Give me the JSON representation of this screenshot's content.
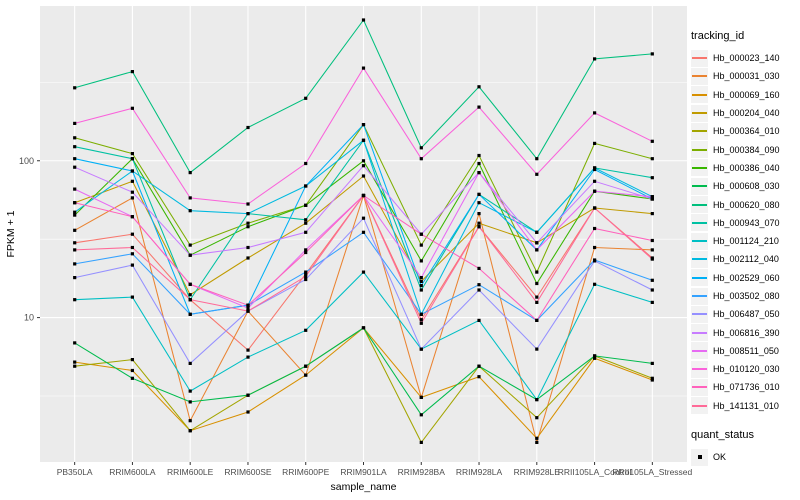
{
  "chart_data": {
    "type": "line",
    "title": "",
    "xlabel": "sample_name",
    "ylabel": "FPKM + 1",
    "y_scale": "log10",
    "ylim": [
      1.2,
      970
    ],
    "y_major_ticks": [
      {
        "value": 10,
        "label": "10"
      },
      {
        "value": 100,
        "label": "100"
      }
    ],
    "y_minor_ticks": [
      3.162,
      31.62,
      316.2
    ],
    "grid": true,
    "legend_position": "right",
    "categories": [
      "PB350LA",
      "RRIM600LA",
      "RRIM600LE",
      "RRIM600SE",
      "RRIM600PE",
      "RRIM901LA",
      "RRIM928BA",
      "RRIM928LA",
      "RRIM928LE",
      "RRII105LA_Control",
      "RRII105LA_Stressed"
    ],
    "series": [
      {
        "name": "Hb_000023_140",
        "color": "#F8766D",
        "values": [
          30,
          34,
          13,
          6.2,
          19,
          60,
          9.7,
          38,
          13.5,
          50,
          24
        ]
      },
      {
        "name": "Hb_000031_030",
        "color": "#EA8331",
        "values": [
          36,
          58,
          2.2,
          11,
          4.3,
          60,
          3.1,
          46,
          1.6,
          28,
          27
        ]
      },
      {
        "name": "Hb_000069_160",
        "color": "#D89000",
        "values": [
          5.2,
          4.6,
          1.9,
          2.5,
          4.3,
          8.6,
          3.1,
          4.2,
          1.7,
          5.5,
          4.0
        ]
      },
      {
        "name": "Hb_000204_040",
        "color": "#C09B00",
        "values": [
          54,
          74,
          14,
          24,
          40,
          80,
          17,
          40,
          30,
          50,
          46
        ]
      },
      {
        "name": "Hb_000364_010",
        "color": "#A3A500",
        "values": [
          4.9,
          5.4,
          1.9,
          3.2,
          4.9,
          8.6,
          1.6,
          4.9,
          2.3,
          5.7,
          4.1
        ]
      },
      {
        "name": "Hb_000384_090",
        "color": "#7CAE00",
        "values": [
          140,
          111,
          29,
          40,
          52,
          170,
          29,
          108,
          19.5,
          129,
          103
        ]
      },
      {
        "name": "Hb_000386_040",
        "color": "#39B600",
        "values": [
          45,
          103,
          25,
          38,
          52,
          100,
          23,
          96,
          16.5,
          64,
          57
        ]
      },
      {
        "name": "Hb_000608_030",
        "color": "#00BB4E",
        "values": [
          6.9,
          4.1,
          2.9,
          3.2,
          4.9,
          8.6,
          2.4,
          4.9,
          3.0,
          5.7,
          5.1
        ]
      },
      {
        "name": "Hb_000620_080",
        "color": "#00BF7D",
        "values": [
          292,
          370,
          84,
          163,
          250,
          790,
          121,
          296,
          103,
          446,
          480
        ]
      },
      {
        "name": "Hb_000943_070",
        "color": "#00C1A3",
        "values": [
          123,
          103,
          13,
          46,
          42,
          135,
          15,
          61,
          35,
          90,
          78
        ]
      },
      {
        "name": "Hb_001124_210",
        "color": "#00BFC4",
        "values": [
          13,
          13.5,
          3.4,
          5.6,
          8.3,
          19.5,
          6.3,
          9.6,
          3.0,
          16.3,
          12.5
        ]
      },
      {
        "name": "Hb_002112_040",
        "color": "#00BAE0",
        "values": [
          47,
          86,
          48,
          46,
          69,
          135,
          10.5,
          54,
          35,
          90,
          59
        ]
      },
      {
        "name": "Hb_002529_060",
        "color": "#00B0F6",
        "values": [
          103,
          86,
          10.5,
          12,
          69,
          170,
          16,
          61,
          27,
          88,
          57
        ]
      },
      {
        "name": "Hb_003502_080",
        "color": "#35A2FF",
        "values": [
          22,
          25.5,
          10.5,
          12,
          19.5,
          35,
          10.5,
          16.2,
          9.6,
          23.3,
          17.3
        ]
      },
      {
        "name": "Hb_006487_050",
        "color": "#9590FF",
        "values": [
          18,
          21.6,
          5.1,
          11,
          17.5,
          43,
          6.3,
          15,
          6.3,
          23,
          15
        ]
      },
      {
        "name": "Hb_006816_390",
        "color": "#C77CFF",
        "values": [
          91,
          63,
          25,
          28,
          35,
          93,
          34,
          84,
          30,
          74,
          57
        ]
      },
      {
        "name": "Hb_008511_050",
        "color": "#E76BF3",
        "values": [
          66,
          44,
          16.3,
          11.5,
          27,
          60,
          18,
          84,
          27,
          64,
          59
        ]
      },
      {
        "name": "Hb_010120_030",
        "color": "#FA62DB",
        "values": [
          173,
          216,
          58,
          53,
          96,
          390,
          103,
          220,
          82,
          202,
          133
        ]
      },
      {
        "name": "Hb_071736_010",
        "color": "#FF62BC",
        "values": [
          54,
          44,
          16.3,
          12,
          26,
          60,
          34,
          20.6,
          9.6,
          37,
          31
        ]
      },
      {
        "name": "Hb_141131_010",
        "color": "#FF6A98",
        "values": [
          27,
          28,
          13,
          11,
          18.3,
          60,
          9.2,
          38,
          12.5,
          50,
          23.6
        ]
      }
    ],
    "point_shape": "square",
    "point_color": "#000000"
  },
  "legend": {
    "title": "tracking_id",
    "quant_title": "quant_status",
    "quant_items": [
      {
        "label": "OK"
      }
    ]
  },
  "colors": {
    "panel_bg": "#EBEBEB",
    "grid": "#FFFFFF",
    "tick_text": "#4D4D4D",
    "axis_title": "#000000",
    "tick_mark": "#333333",
    "key_bg": "#F2F2F2",
    "point": "#000000"
  }
}
